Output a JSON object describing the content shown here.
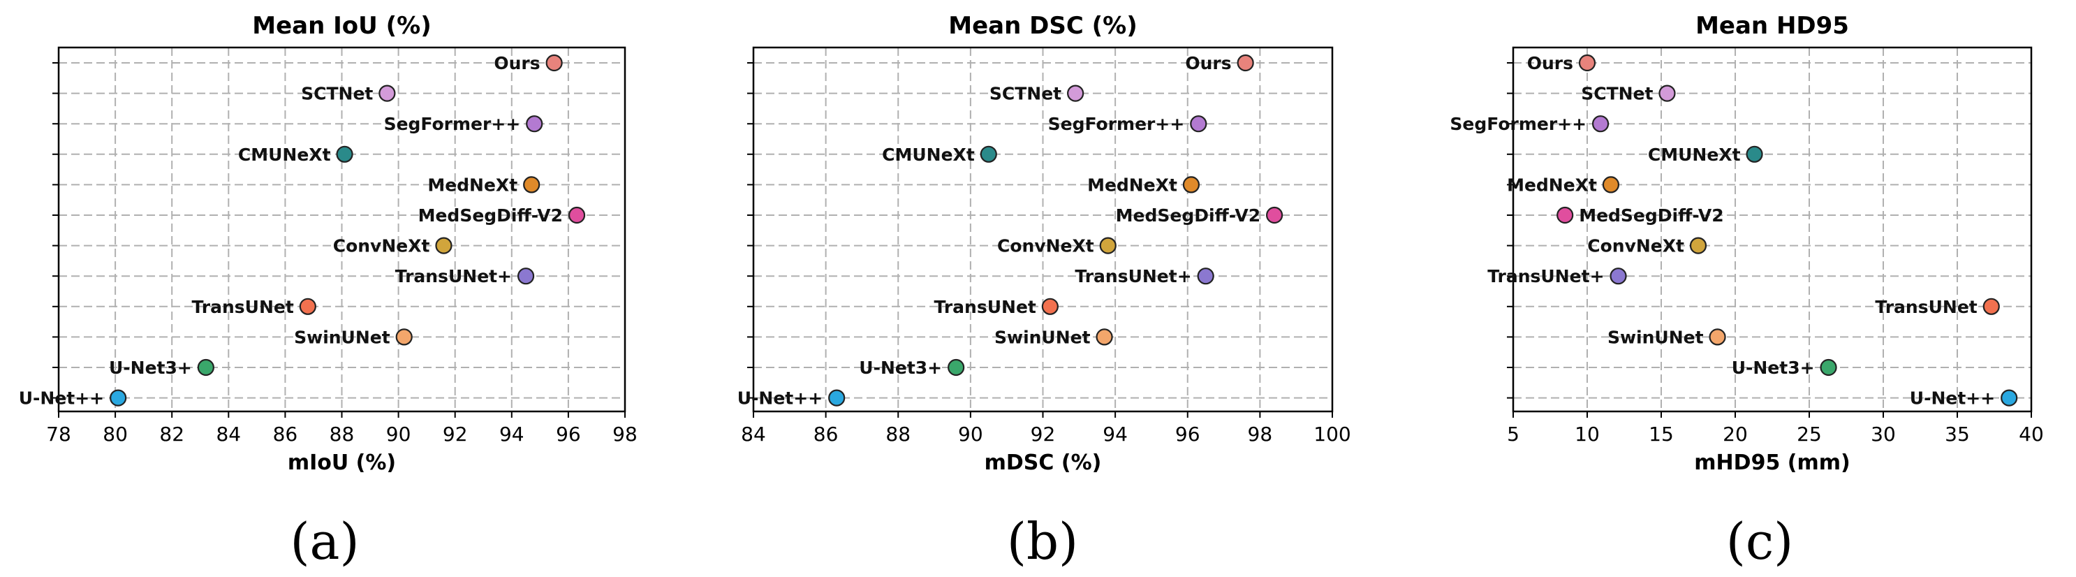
{
  "chart_data": [
    {
      "type": "scatter",
      "title": "Mean IoU (%)",
      "xlabel": "mIoU (%)",
      "panel_label": "(a)",
      "xlim": [
        78,
        98
      ],
      "xticks": [
        78,
        80,
        82,
        84,
        86,
        88,
        90,
        92,
        94,
        96,
        98
      ],
      "grid": true,
      "points": [
        {
          "name": "Ours",
          "x": 95.5,
          "color": "#e8837c",
          "label_side": "left"
        },
        {
          "name": "SCTNet",
          "x": 89.6,
          "color": "#d39bd9",
          "label_side": "left"
        },
        {
          "name": "SegFormer++",
          "x": 94.8,
          "color": "#b37ad1",
          "label_side": "left"
        },
        {
          "name": "CMUNeXt",
          "x": 88.1,
          "color": "#2a8a8a",
          "label_side": "left"
        },
        {
          "name": "MedNeXt",
          "x": 94.7,
          "color": "#e08a2a",
          "label_side": "left"
        },
        {
          "name": "MedSegDiff-V2",
          "x": 96.3,
          "color": "#e04e9e",
          "label_side": "left"
        },
        {
          "name": "ConvNeXt",
          "x": 91.6,
          "color": "#d1a53c",
          "label_side": "left"
        },
        {
          "name": "TransUNet+",
          "x": 94.5,
          "color": "#8b78d0",
          "label_side": "left"
        },
        {
          "name": "TransUNet",
          "x": 86.8,
          "color": "#f2714f",
          "label_side": "left"
        },
        {
          "name": "SwinUNet",
          "x": 90.2,
          "color": "#f3a66b",
          "label_side": "left"
        },
        {
          "name": "U-Net3+",
          "x": 83.2,
          "color": "#3aa76b",
          "label_side": "left"
        },
        {
          "name": "U-Net++",
          "x": 80.1,
          "color": "#2aa8e0",
          "label_side": "left"
        }
      ]
    },
    {
      "type": "scatter",
      "title": "Mean DSC (%)",
      "xlabel": "mDSC (%)",
      "panel_label": "(b)",
      "xlim": [
        84,
        100
      ],
      "xticks": [
        84,
        86,
        88,
        90,
        92,
        94,
        96,
        98,
        100
      ],
      "grid": true,
      "points": [
        {
          "name": "Ours",
          "x": 97.6,
          "color": "#e8837c",
          "label_side": "left"
        },
        {
          "name": "SCTNet",
          "x": 92.9,
          "color": "#d39bd9",
          "label_side": "left"
        },
        {
          "name": "SegFormer++",
          "x": 96.3,
          "color": "#b37ad1",
          "label_side": "left"
        },
        {
          "name": "CMUNeXt",
          "x": 90.5,
          "color": "#2a8a8a",
          "label_side": "left"
        },
        {
          "name": "MedNeXt",
          "x": 96.1,
          "color": "#e08a2a",
          "label_side": "left"
        },
        {
          "name": "MedSegDiff-V2",
          "x": 98.4,
          "color": "#e04e9e",
          "label_side": "left"
        },
        {
          "name": "ConvNeXt",
          "x": 93.8,
          "color": "#d1a53c",
          "label_side": "left"
        },
        {
          "name": "TransUNet+",
          "x": 96.5,
          "color": "#8b78d0",
          "label_side": "left"
        },
        {
          "name": "TransUNet",
          "x": 92.2,
          "color": "#f2714f",
          "label_side": "left"
        },
        {
          "name": "SwinUNet",
          "x": 93.7,
          "color": "#f3a66b",
          "label_side": "left"
        },
        {
          "name": "U-Net3+",
          "x": 89.6,
          "color": "#3aa76b",
          "label_side": "left"
        },
        {
          "name": "U-Net++",
          "x": 86.3,
          "color": "#2aa8e0",
          "label_side": "left"
        }
      ]
    },
    {
      "type": "scatter",
      "title": "Mean HD95",
      "xlabel": "mHD95 (mm)",
      "panel_label": "(c)",
      "xlim": [
        5,
        40
      ],
      "xticks": [
        5,
        10,
        15,
        20,
        25,
        30,
        35,
        40
      ],
      "grid": true,
      "points": [
        {
          "name": "Ours",
          "x": 10.0,
          "color": "#e8837c",
          "label_side": "left"
        },
        {
          "name": "SCTNet",
          "x": 15.4,
          "color": "#d39bd9",
          "label_side": "left"
        },
        {
          "name": "SegFormer++",
          "x": 10.9,
          "color": "#b37ad1",
          "label_side": "left"
        },
        {
          "name": "CMUNeXt",
          "x": 21.3,
          "color": "#2a8a8a",
          "label_side": "left"
        },
        {
          "name": "MedNeXt",
          "x": 11.6,
          "color": "#e08a2a",
          "label_side": "left"
        },
        {
          "name": "MedSegDiff-V2",
          "x": 8.5,
          "color": "#e04e9e",
          "label_side": "right"
        },
        {
          "name": "ConvNeXt",
          "x": 17.5,
          "color": "#d1a53c",
          "label_side": "left"
        },
        {
          "name": "TransUNet+",
          "x": 12.1,
          "color": "#8b78d0",
          "label_side": "left"
        },
        {
          "name": "TransUNet",
          "x": 37.3,
          "color": "#f2714f",
          "label_side": "left"
        },
        {
          "name": "SwinUNet",
          "x": 18.8,
          "color": "#f3a66b",
          "label_side": "left"
        },
        {
          "name": "U-Net3+",
          "x": 26.3,
          "color": "#3aa76b",
          "label_side": "left"
        },
        {
          "name": "U-Net++",
          "x": 38.5,
          "color": "#2aa8e0",
          "label_side": "left"
        }
      ]
    }
  ]
}
